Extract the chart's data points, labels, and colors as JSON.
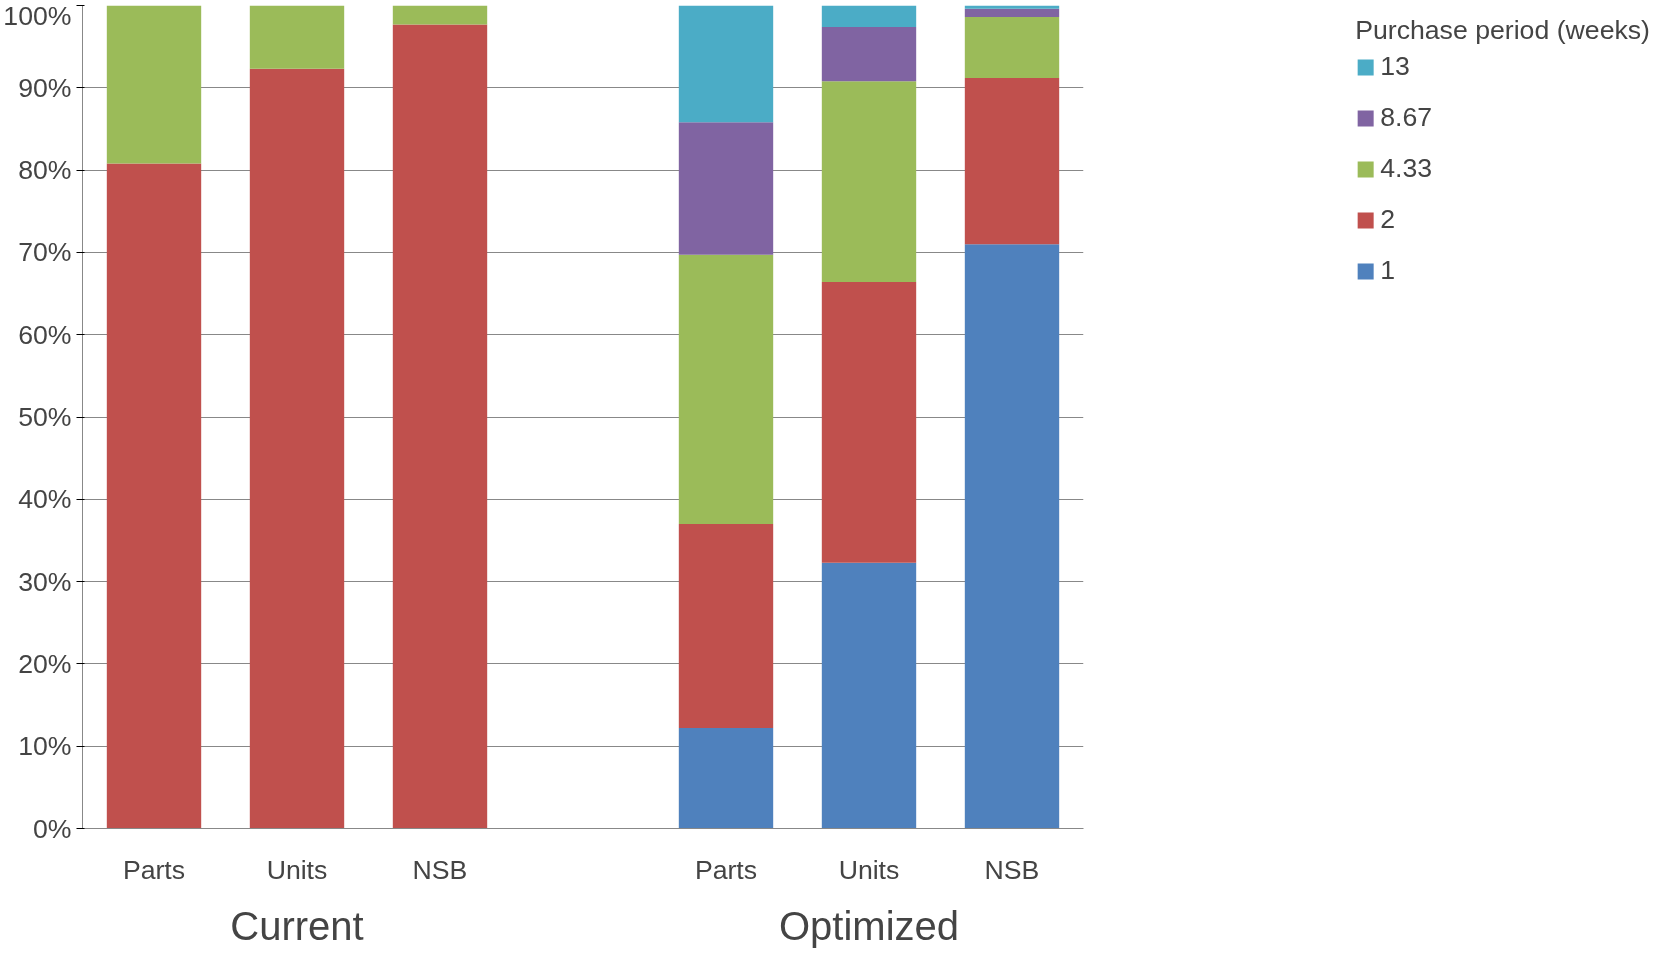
{
  "chart_data": {
    "type": "bar",
    "stacked": true,
    "categories": [
      "Parts",
      "Units",
      "NSB",
      null,
      "Parts",
      "Units",
      "NSB"
    ],
    "legend_title": "Purchase period (weeks)",
    "annotations": [
      "Current",
      "Optimized"
    ],
    "series": [
      {
        "name": "1",
        "color": "#4f81bd",
        "values": [
          0,
          0,
          0,
          null,
          12.2,
          32.3,
          71.0
        ]
      },
      {
        "name": "2",
        "color": "#c0504d",
        "values": [
          80.8,
          92.3,
          97.7,
          null,
          24.8,
          34.1,
          20.2
        ]
      },
      {
        "name": "4.33",
        "color": "#9bbb59",
        "values": [
          19.2,
          7.7,
          2.3,
          null,
          32.7,
          24.4,
          7.4
        ]
      },
      {
        "name": "8.67",
        "color": "#8064a2",
        "values": [
          0,
          0,
          0,
          null,
          16.1,
          6.6,
          1.0
        ]
      },
      {
        "name": "13",
        "color": "#4bacc6",
        "values": [
          0,
          0,
          0,
          null,
          14.2,
          2.6,
          0.4
        ]
      }
    ],
    "ylim": [
      0,
      100
    ],
    "yticks": [
      {
        "value": 0,
        "label": "0%"
      },
      {
        "value": 10,
        "label": "10%"
      },
      {
        "value": 20,
        "label": "20%"
      },
      {
        "value": 30,
        "label": "30%"
      },
      {
        "value": 40,
        "label": "40%"
      },
      {
        "value": 50,
        "label": "50%"
      },
      {
        "value": 60,
        "label": "60%"
      },
      {
        "value": 70,
        "label": "70%"
      },
      {
        "value": 80,
        "label": "80%"
      },
      {
        "value": 90,
        "label": "90%"
      },
      {
        "value": 100,
        "label": "100%"
      }
    ],
    "grid": "y",
    "legend": "right"
  }
}
